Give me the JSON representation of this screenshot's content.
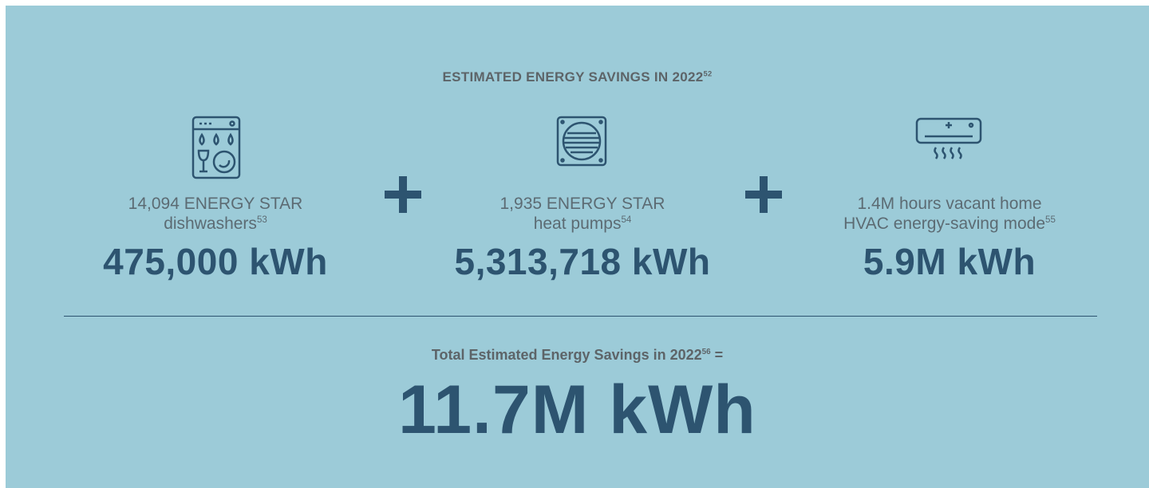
{
  "header": {
    "title": "ESTIMATED ENERGY SAVINGS IN 2022",
    "title_note": "52"
  },
  "items": [
    {
      "line1": "14,094 ENERGY STAR",
      "line2": "dishwashers",
      "note": "53",
      "value": "475,000 kWh"
    },
    {
      "line1": "1,935 ENERGY STAR",
      "line2": "heat pumps",
      "note": "54",
      "value": "5,313,718 kWh"
    },
    {
      "line1": "1.4M hours vacant home",
      "line2": "HVAC energy-saving mode",
      "note": "55",
      "value": "5.9M kWh"
    }
  ],
  "total": {
    "label": "Total Estimated Energy Savings in 2022",
    "note": "56",
    "equals": "=",
    "value": "11.7M kWh"
  }
}
